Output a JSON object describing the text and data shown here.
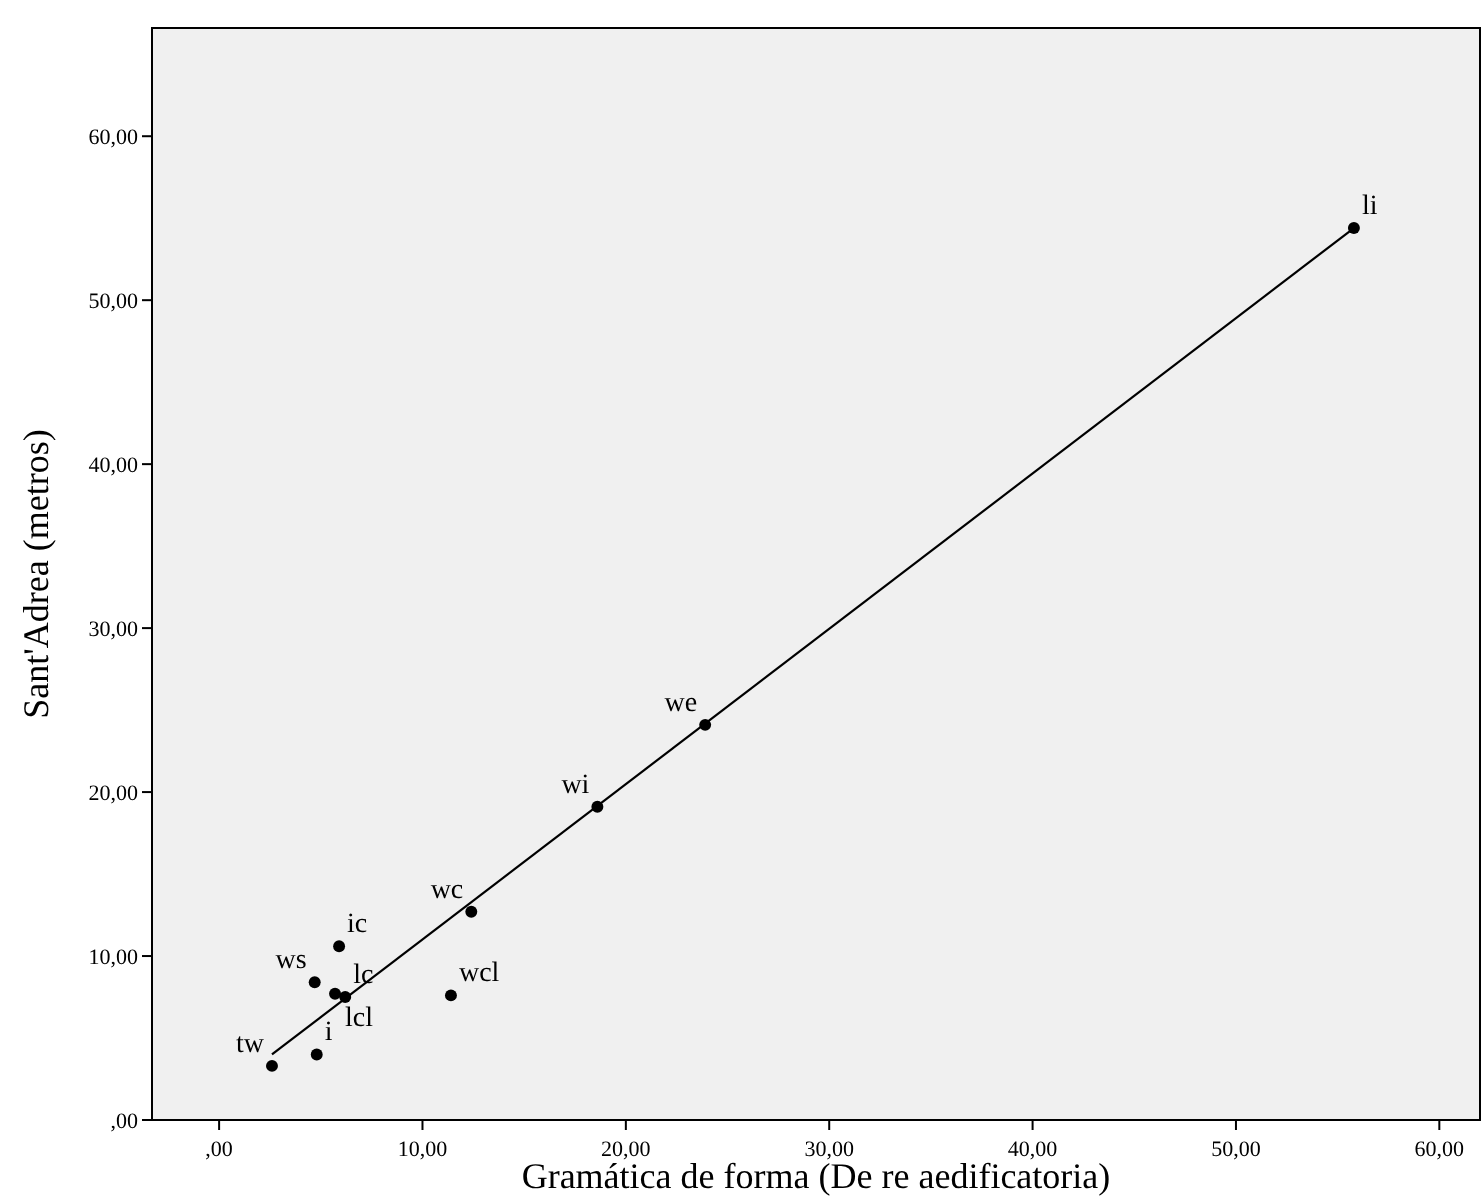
{
  "chart_data": {
    "type": "scatter",
    "xlabel": "Gramática de forma (De re aedificatoria)",
    "ylabel": "Sant'Adrea (metros)",
    "xlim": [
      -3.3,
      62
    ],
    "ylim": [
      0,
      66.6
    ],
    "xticks": [
      {
        "value": 0,
        "label": ",00"
      },
      {
        "value": 10,
        "label": "10,00"
      },
      {
        "value": 20,
        "label": "20,00"
      },
      {
        "value": 30,
        "label": "30,00"
      },
      {
        "value": 40,
        "label": "40,00"
      },
      {
        "value": 50,
        "label": "50,00"
      },
      {
        "value": 60,
        "label": "60,00"
      }
    ],
    "yticks": [
      {
        "value": 0,
        "label": ",00"
      },
      {
        "value": 10,
        "label": "10,00"
      },
      {
        "value": 20,
        "label": "20,00"
      },
      {
        "value": 30,
        "label": "30,00"
      },
      {
        "value": 40,
        "label": "40,00"
      },
      {
        "value": 50,
        "label": "50,00"
      },
      {
        "value": 60,
        "label": "60,00"
      }
    ],
    "marker": "circle",
    "series": [
      {
        "color": "#000000",
        "x": [
          55.8,
          23.9,
          18.6,
          12.4,
          11.4,
          5.9,
          4.7,
          5.7,
          6.2,
          4.8,
          2.6
        ],
        "values": [
          54.4,
          24.1,
          19.1,
          12.7,
          7.6,
          10.6,
          8.4,
          7.7,
          7.5,
          4.0,
          3.3
        ]
      },
      {
        "type": "line",
        "color": "#000000",
        "x": [
          2.6,
          55.8
        ],
        "values": [
          4.0,
          54.4
        ],
        "line_style": "solid",
        "marker": "none"
      }
    ],
    "annotations": [
      {
        "text": "li",
        "x": 55.8,
        "y": 54.4
      },
      {
        "text": "we",
        "x": 23.9,
        "y": 24.1
      },
      {
        "text": "wi",
        "x": 18.6,
        "y": 19.1
      },
      {
        "text": "wc",
        "x": 12.4,
        "y": 12.7
      },
      {
        "text": "wcl",
        "x": 11.4,
        "y": 7.6
      },
      {
        "text": "ic",
        "x": 5.9,
        "y": 10.6
      },
      {
        "text": "ws",
        "x": 4.7,
        "y": 8.4
      },
      {
        "text": "lcl",
        "x": 5.7,
        "y": 7.7
      },
      {
        "text": "lc",
        "x": 6.2,
        "y": 7.5
      },
      {
        "text": "i",
        "x": 4.8,
        "y": 4.0
      },
      {
        "text": "tw",
        "x": 2.6,
        "y": 3.3
      }
    ]
  }
}
